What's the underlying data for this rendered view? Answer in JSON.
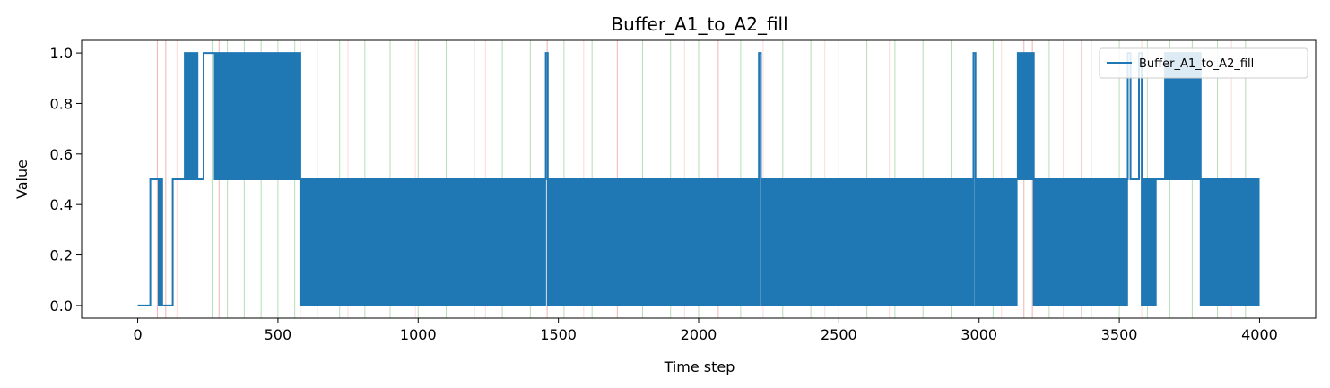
{
  "chart_data": {
    "type": "line",
    "title": "Buffer_A1_to_A2_fill",
    "xlabel": "Time step",
    "ylabel": "Value",
    "xlim": [
      -200,
      4200
    ],
    "ylim": [
      -0.05,
      1.05
    ],
    "xticks": [
      0,
      500,
      1000,
      1500,
      2000,
      2500,
      3000,
      3500,
      4000
    ],
    "yticks": [
      0.0,
      0.2,
      0.4,
      0.6,
      0.8,
      1.0
    ],
    "xtick_labels": [
      "0",
      "500",
      "1000",
      "1500",
      "2000",
      "2500",
      "3000",
      "3500",
      "4000"
    ],
    "ytick_labels": [
      "0.0",
      "0.2",
      "0.4",
      "0.6",
      "0.8",
      "1.0"
    ],
    "grid": false,
    "legend_position": "top-right",
    "series": [
      {
        "name": "Buffer_A1_to_A2_fill",
        "color": "#1f77b4",
        "segments": [
          {
            "x_start": 0,
            "x_end": 45,
            "pattern": "constant",
            "values": [
              0.0
            ]
          },
          {
            "x_start": 45,
            "x_end": 75,
            "pattern": "constant",
            "values": [
              0.5
            ]
          },
          {
            "x_start": 75,
            "x_end": 90,
            "pattern": "oscillate",
            "values": [
              0.0,
              0.5
            ]
          },
          {
            "x_start": 90,
            "x_end": 125,
            "pattern": "constant",
            "values": [
              0.0
            ]
          },
          {
            "x_start": 125,
            "x_end": 165,
            "pattern": "constant",
            "values": [
              0.5
            ]
          },
          {
            "x_start": 165,
            "x_end": 215,
            "pattern": "oscillate",
            "values": [
              0.5,
              1.0
            ]
          },
          {
            "x_start": 215,
            "x_end": 235,
            "pattern": "constant",
            "values": [
              0.5
            ]
          },
          {
            "x_start": 235,
            "x_end": 275,
            "pattern": "constant",
            "values": [
              1.0
            ]
          },
          {
            "x_start": 275,
            "x_end": 580,
            "pattern": "oscillate",
            "values": [
              0.5,
              1.0
            ]
          },
          {
            "x_start": 580,
            "x_end": 1455,
            "pattern": "oscillate",
            "values": [
              0.0,
              0.5
            ]
          },
          {
            "x_start": 1455,
            "x_end": 1462,
            "pattern": "constant",
            "values": [
              1.0
            ]
          },
          {
            "x_start": 1462,
            "x_end": 2215,
            "pattern": "oscillate",
            "values": [
              0.0,
              0.5
            ]
          },
          {
            "x_start": 2215,
            "x_end": 2222,
            "pattern": "constant",
            "values": [
              1.0
            ]
          },
          {
            "x_start": 2222,
            "x_end": 2980,
            "pattern": "oscillate",
            "values": [
              0.0,
              0.5
            ]
          },
          {
            "x_start": 2980,
            "x_end": 2987,
            "pattern": "constant",
            "values": [
              1.0
            ]
          },
          {
            "x_start": 2987,
            "x_end": 3135,
            "pattern": "oscillate",
            "values": [
              0.0,
              0.5
            ]
          },
          {
            "x_start": 3135,
            "x_end": 3195,
            "pattern": "oscillate",
            "values": [
              0.5,
              1.0
            ]
          },
          {
            "x_start": 3195,
            "x_end": 3530,
            "pattern": "oscillate",
            "values": [
              0.0,
              0.5
            ]
          },
          {
            "x_start": 3530,
            "x_end": 3540,
            "pattern": "constant",
            "values": [
              1.0
            ]
          },
          {
            "x_start": 3540,
            "x_end": 3570,
            "pattern": "constant",
            "values": [
              0.5
            ]
          },
          {
            "x_start": 3570,
            "x_end": 3580,
            "pattern": "constant",
            "values": [
              1.0
            ]
          },
          {
            "x_start": 3580,
            "x_end": 3630,
            "pattern": "oscillate",
            "values": [
              0.0,
              0.5
            ]
          },
          {
            "x_start": 3630,
            "x_end": 3660,
            "pattern": "constant",
            "values": [
              0.5
            ]
          },
          {
            "x_start": 3660,
            "x_end": 3790,
            "pattern": "oscillate",
            "values": [
              0.5,
              1.0
            ]
          },
          {
            "x_start": 3790,
            "x_end": 4000,
            "pattern": "oscillate",
            "values": [
              0.0,
              0.5
            ]
          }
        ]
      }
    ],
    "event_markers": {
      "red": {
        "color": "#d62728",
        "x": [
          70,
          100,
          290,
          1460,
          1710,
          2070,
          3160,
          3190,
          3365
        ]
      },
      "green": {
        "color": "#2ca02c",
        "x": [
          265,
          320,
          380,
          440,
          500,
          560,
          640,
          720,
          810,
          900,
          1000,
          1100,
          1200,
          1300,
          1400,
          1520,
          1620,
          1800,
          1900,
          2000,
          2150,
          2300,
          2400,
          2500,
          2600,
          2700,
          2800,
          2900,
          3050,
          3250,
          3400,
          3500,
          3600,
          3680,
          3760,
          3850,
          3950
        ]
      },
      "salmon": {
        "color": "#ff9896",
        "x": [
          140,
          580,
          750,
          990,
          1240,
          1590,
          1950,
          2230,
          2450,
          2680,
          3080,
          3300,
          3580,
          3900
        ]
      }
    }
  }
}
